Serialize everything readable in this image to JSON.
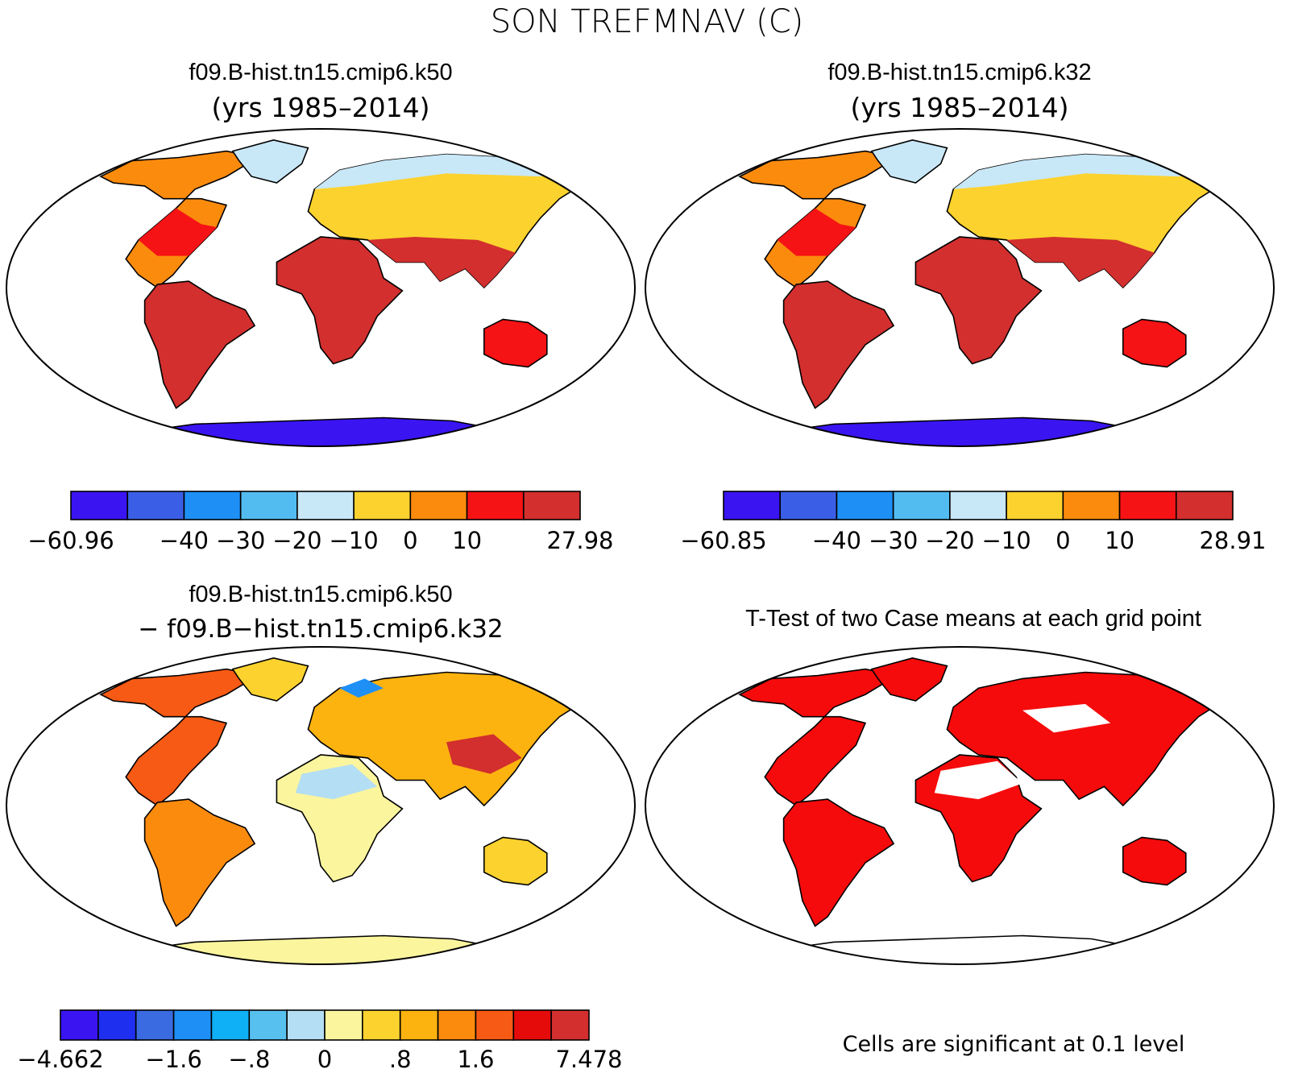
{
  "figure": {
    "title": "SON TREFMNAV (C)"
  },
  "panels": [
    {
      "id": "k50",
      "title": "f09.B-hist.tn15.cmip6.k50",
      "subtitle": "(yrs 1985–2014)",
      "kind": "absolute",
      "colorbar": {
        "colors": [
          "#3b14f2",
          "#3a5fe6",
          "#1e90f5",
          "#52bcf0",
          "#c8e7f7",
          "#fcd22e",
          "#fb8b0d",
          "#f61315",
          "#d22f2e"
        ],
        "tick_labels": [
          "−60.96",
          "−40",
          "−30",
          "−20",
          "−10",
          "0",
          "10",
          "27.98"
        ]
      }
    },
    {
      "id": "k32",
      "title": "f09.B-hist.tn15.cmip6.k32",
      "subtitle": "(yrs 1985–2014)",
      "kind": "absolute",
      "colorbar": {
        "colors": [
          "#3b14f2",
          "#3a5fe6",
          "#1e90f5",
          "#52bcf0",
          "#c8e7f7",
          "#fcd22e",
          "#fb8b0d",
          "#f61315",
          "#d22f2e"
        ],
        "tick_labels": [
          "−60.85",
          "−40",
          "−30",
          "−20",
          "−10",
          "0",
          "10",
          "28.91"
        ]
      }
    },
    {
      "id": "diff",
      "title": "f09.B-hist.tn15.cmip6.k50",
      "subtitle": "− f09.B−hist.tn15.cmip6.k32",
      "kind": "difference",
      "colorbar": {
        "colors": [
          "#3b14f2",
          "#1e2ff0",
          "#3a6be0",
          "#1e8ff5",
          "#0fb0f5",
          "#57c0ef",
          "#b4def3",
          "#fbf59e",
          "#fcd22e",
          "#fcb30f",
          "#fb8b0d",
          "#f75a14",
          "#e60b0b",
          "#d22f2e"
        ],
        "tick_labels": [
          "−4.662",
          "−1.6",
          "−.8",
          "0",
          ".8",
          "1.6",
          "7.478"
        ]
      }
    },
    {
      "id": "ttest",
      "title": "T-Test of two Case means at each grid point",
      "subtitle": "",
      "kind": "significance",
      "fill_color": "#f50b0b",
      "footnote": "Cells are significant at 0.1 level"
    }
  ]
}
